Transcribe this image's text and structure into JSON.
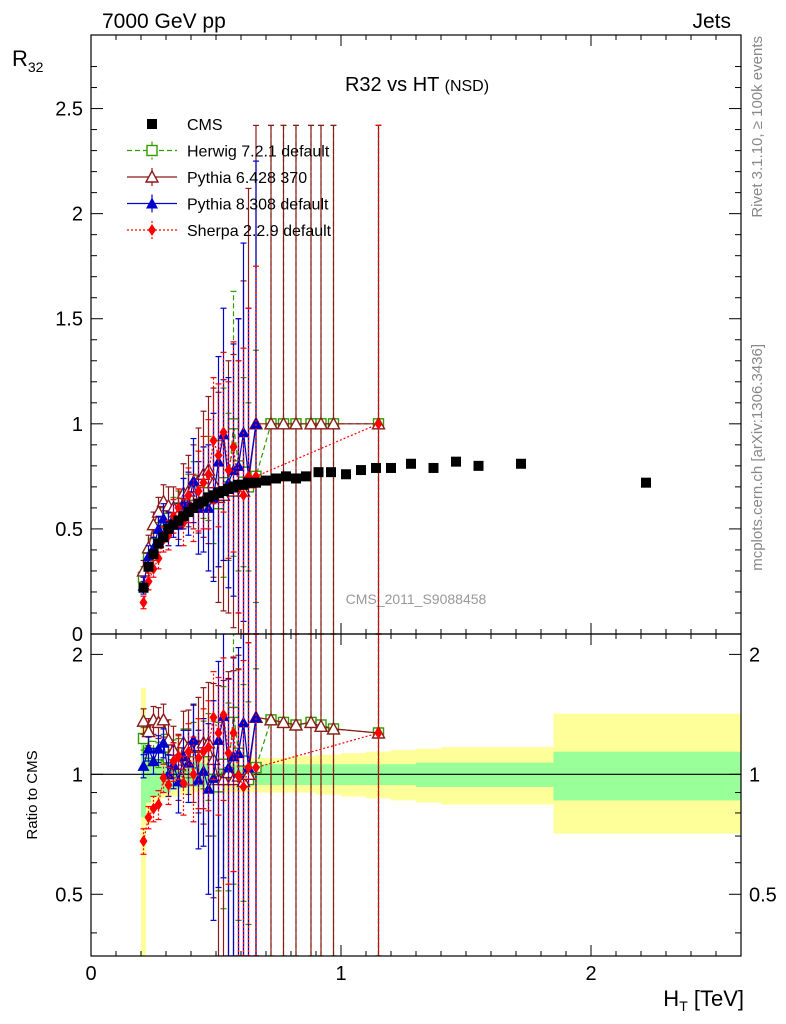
{
  "header": {
    "left": "7000 GeV pp",
    "right": "Jets"
  },
  "side_labels": {
    "rivet": "Rivet 3.1.10, ≥ 100k events",
    "mcplots": "mcplots.cern.ch [arXiv:1306.3436]"
  },
  "analysis_id": "CMS_2011_S9088458",
  "colors": {
    "cms": "#000000",
    "herwig": "#339900",
    "pythia6": "#8b1a1a",
    "pythia8": "#0000cc",
    "sherpa": "#ff0000",
    "band_outer": "#ffff99",
    "band_inner": "#99ff99"
  },
  "chart_data": [
    {
      "type": "scatter",
      "panel": "main",
      "title_main": "R32 vs HT",
      "title_sub": "(NSD)",
      "ylabel_main": "R",
      "ylabel_sub": "32",
      "xlim": [
        0,
        2.6
      ],
      "ylim": [
        0,
        2.85
      ],
      "yticks": [
        0,
        0.5,
        1,
        1.5,
        2,
        2.5
      ],
      "ytick_labels": [
        "0",
        "0.5",
        "1",
        "1.5",
        "2",
        "2.5"
      ],
      "legend_position": "top-left",
      "series": [
        {
          "name": "CMS",
          "key": "cms",
          "x": [
            0.21,
            0.23,
            0.25,
            0.27,
            0.29,
            0.31,
            0.33,
            0.35,
            0.37,
            0.39,
            0.41,
            0.43,
            0.45,
            0.47,
            0.49,
            0.51,
            0.53,
            0.55,
            0.57,
            0.59,
            0.61,
            0.63,
            0.66,
            0.7,
            0.74,
            0.78,
            0.82,
            0.86,
            0.91,
            0.96,
            1.02,
            1.08,
            1.14,
            1.2,
            1.28,
            1.37,
            1.46,
            1.55,
            1.72,
            2.22
          ],
          "y": [
            0.22,
            0.32,
            0.38,
            0.43,
            0.46,
            0.5,
            0.52,
            0.54,
            0.56,
            0.58,
            0.6,
            0.62,
            0.63,
            0.65,
            0.66,
            0.67,
            0.68,
            0.69,
            0.7,
            0.71,
            0.71,
            0.72,
            0.72,
            0.73,
            0.74,
            0.75,
            0.74,
            0.75,
            0.77,
            0.77,
            0.76,
            0.78,
            0.79,
            0.79,
            0.81,
            0.79,
            0.82,
            0.8,
            0.81,
            0.72
          ]
        },
        {
          "name": "Herwig 7.2.1 default",
          "key": "herwig",
          "x": [
            0.21,
            0.23,
            0.25,
            0.27,
            0.29,
            0.31,
            0.33,
            0.35,
            0.37,
            0.39,
            0.41,
            0.43,
            0.45,
            0.47,
            0.49,
            0.51,
            0.53,
            0.55,
            0.57,
            0.59,
            0.61,
            0.63,
            0.66,
            0.72,
            0.77,
            0.82,
            0.88,
            0.92,
            0.97,
            1.15
          ],
          "y": [
            0.27,
            0.36,
            0.43,
            0.48,
            0.54,
            0.55,
            0.58,
            0.6,
            0.65,
            0.66,
            0.7,
            0.73,
            0.72,
            0.74,
            0.68,
            0.62,
            0.72,
            0.7,
            1.0,
            0.8,
            0.77,
            0.7,
            0.75,
            1.0,
            1.0,
            1.0,
            1.0,
            1.0,
            1.0,
            1.0
          ],
          "yerr": [
            0.05,
            0.05,
            0.05,
            0.05,
            0.06,
            0.06,
            0.07,
            0.08,
            0.09,
            0.1,
            0.12,
            0.14,
            0.17,
            0.2,
            0.25,
            0.3,
            0.45,
            0.35,
            0.63,
            0.5,
            0.45,
            0.4,
            0.6,
            1.42,
            1.42,
            1.42,
            1.42,
            1.42,
            1.42,
            1.42
          ]
        },
        {
          "name": "Pythia 6.428 370",
          "key": "pythia6",
          "x": [
            0.21,
            0.23,
            0.25,
            0.27,
            0.29,
            0.31,
            0.33,
            0.35,
            0.37,
            0.39,
            0.41,
            0.43,
            0.45,
            0.47,
            0.49,
            0.51,
            0.53,
            0.55,
            0.57,
            0.59,
            0.61,
            0.63,
            0.66,
            0.72,
            0.77,
            0.82,
            0.88,
            0.92,
            0.97,
            1.15
          ],
          "y": [
            0.3,
            0.41,
            0.52,
            0.58,
            0.63,
            0.61,
            0.6,
            0.57,
            0.67,
            0.68,
            0.7,
            0.73,
            0.76,
            0.78,
            0.72,
            0.65,
            0.66,
            0.7,
            0.68,
            0.7,
            0.68,
            0.72,
            1.0,
            1.0,
            1.0,
            1.0,
            1.0,
            1.0,
            1.0,
            1.0
          ],
          "yerr": [
            0.05,
            0.06,
            0.06,
            0.07,
            0.08,
            0.09,
            0.1,
            0.12,
            0.14,
            0.17,
            0.2,
            0.25,
            0.3,
            0.35,
            0.45,
            0.5,
            0.55,
            0.6,
            0.65,
            0.8,
            1.0,
            1.4,
            1.42,
            1.42,
            1.42,
            1.42,
            1.42,
            1.42,
            1.42,
            1.42
          ]
        },
        {
          "name": "Pythia 8.308 default",
          "key": "pythia8",
          "x": [
            0.21,
            0.23,
            0.25,
            0.27,
            0.29,
            0.31,
            0.33,
            0.35,
            0.37,
            0.39,
            0.41,
            0.43,
            0.45,
            0.47,
            0.49,
            0.51,
            0.53,
            0.55,
            0.57,
            0.59,
            0.61,
            0.63,
            0.66
          ],
          "y": [
            0.23,
            0.37,
            0.41,
            0.5,
            0.55,
            0.5,
            0.55,
            0.52,
            0.62,
            0.62,
            0.73,
            0.6,
            0.64,
            0.6,
            0.65,
            0.82,
            0.95,
            0.72,
            0.78,
            0.8,
            0.96,
            0.75,
            1.0
          ],
          "yerr": [
            0.04,
            0.05,
            0.05,
            0.06,
            0.07,
            0.08,
            0.09,
            0.1,
            0.12,
            0.15,
            0.2,
            0.22,
            0.25,
            0.3,
            0.4,
            0.5,
            0.6,
            0.5,
            0.6,
            0.7,
            0.9,
            0.8,
            1.25
          ]
        },
        {
          "name": "Sherpa 2.2.9 default",
          "key": "sherpa",
          "x": [
            0.21,
            0.23,
            0.25,
            0.27,
            0.29,
            0.31,
            0.33,
            0.35,
            0.37,
            0.39,
            0.41,
            0.43,
            0.45,
            0.47,
            0.49,
            0.51,
            0.53,
            0.55,
            0.57,
            0.59,
            0.61,
            0.63,
            0.66,
            1.15
          ],
          "y": [
            0.15,
            0.25,
            0.31,
            0.36,
            0.45,
            0.47,
            0.56,
            0.6,
            0.53,
            0.66,
            0.6,
            0.68,
            0.72,
            0.76,
            0.92,
            0.85,
            0.96,
            0.78,
            0.89,
            0.7,
            0.66,
            0.75,
            0.75,
            1.0
          ],
          "yerr": [
            0.03,
            0.04,
            0.04,
            0.05,
            0.06,
            0.07,
            0.08,
            0.09,
            0.11,
            0.13,
            0.16,
            0.19,
            0.22,
            0.26,
            0.3,
            0.34,
            0.38,
            0.42,
            0.5,
            0.6,
            0.7,
            0.8,
            1.0,
            1.42
          ]
        }
      ]
    },
    {
      "type": "scatter",
      "panel": "ratio",
      "ylabel": "Ratio to CMS",
      "xlabel_main": "H",
      "xlabel_sub": "T",
      "xlabel_unit": " [TeV]",
      "xlim": [
        0,
        2.6
      ],
      "ylim": [
        0.35,
        2.25
      ],
      "xticks": [
        0,
        1,
        2
      ],
      "xtick_labels": [
        "0",
        "1",
        "2"
      ],
      "yticks": [
        0.5,
        1,
        2
      ],
      "ytick_labels": [
        "0.5",
        "1",
        "2"
      ],
      "reference_line": 1,
      "band": {
        "x_edges": [
          0.2,
          0.22,
          0.24,
          0.28,
          0.32,
          0.36,
          0.4,
          0.45,
          0.5,
          0.6,
          0.7,
          0.8,
          0.9,
          1.0,
          1.1,
          1.2,
          1.3,
          1.4,
          1.5,
          1.6,
          1.85,
          2.6
        ],
        "inner_lo": [
          0.78,
          0.85,
          0.88,
          0.9,
          0.92,
          0.93,
          0.93,
          0.94,
          0.94,
          0.94,
          0.94,
          0.94,
          0.94,
          0.94,
          0.94,
          0.94,
          0.93,
          0.93,
          0.93,
          0.93,
          0.86
        ],
        "inner_hi": [
          1.22,
          1.15,
          1.12,
          1.1,
          1.08,
          1.07,
          1.07,
          1.06,
          1.06,
          1.06,
          1.06,
          1.06,
          1.06,
          1.06,
          1.06,
          1.06,
          1.07,
          1.07,
          1.07,
          1.07,
          1.14
        ],
        "outer_lo": [
          0.35,
          0.75,
          0.85,
          0.87,
          0.88,
          0.89,
          0.9,
          0.9,
          0.9,
          0.9,
          0.9,
          0.9,
          0.89,
          0.88,
          0.87,
          0.86,
          0.85,
          0.84,
          0.84,
          0.84,
          0.71
        ],
        "outer_hi": [
          1.65,
          1.3,
          1.17,
          1.14,
          1.12,
          1.11,
          1.1,
          1.1,
          1.1,
          1.1,
          1.1,
          1.11,
          1.12,
          1.13,
          1.14,
          1.15,
          1.16,
          1.17,
          1.17,
          1.17,
          1.42
        ]
      },
      "series": [
        {
          "name": "Herwig 7.2.1 default",
          "key": "herwig",
          "x": [
            0.21,
            0.23,
            0.25,
            0.27,
            0.29,
            0.31,
            0.33,
            0.35,
            0.37,
            0.39,
            0.41,
            0.43,
            0.45,
            0.47,
            0.49,
            0.51,
            0.53,
            0.55,
            0.57,
            0.59,
            0.61,
            0.63,
            0.66,
            0.72,
            0.77,
            0.82,
            0.88,
            0.92,
            0.97,
            1.15
          ],
          "y": [
            1.23,
            1.13,
            1.13,
            1.12,
            1.17,
            1.1,
            1.12,
            1.11,
            1.16,
            1.14,
            1.17,
            1.18,
            1.14,
            1.14,
            1.03,
            0.93,
            1.06,
            1.01,
            1.43,
            1.13,
            1.08,
            0.97,
            1.04,
            1.37,
            1.35,
            1.33,
            1.35,
            1.33,
            1.3,
            1.27
          ],
          "yerr": [
            0.08,
            0.08,
            0.08,
            0.08,
            0.09,
            0.09,
            0.1,
            0.12,
            0.14,
            0.16,
            0.18,
            0.2,
            0.22,
            0.28,
            0.33,
            0.42,
            0.6,
            0.5,
            0.9,
            0.7,
            0.6,
            0.55,
            0.8,
            1.8,
            1.8,
            1.8,
            1.8,
            1.8,
            1.8,
            1.8
          ]
        },
        {
          "name": "Pythia 6.428 370",
          "key": "pythia6",
          "x": [
            0.21,
            0.23,
            0.25,
            0.27,
            0.29,
            0.31,
            0.33,
            0.35,
            0.37,
            0.39,
            0.41,
            0.43,
            0.45,
            0.47,
            0.49,
            0.51,
            0.53,
            0.55,
            0.57,
            0.59,
            0.61,
            0.63,
            0.66,
            0.72,
            0.77,
            0.82,
            0.88,
            0.92,
            0.97,
            1.15
          ],
          "y": [
            1.36,
            1.28,
            1.37,
            1.35,
            1.37,
            1.22,
            1.15,
            1.06,
            1.2,
            1.17,
            1.17,
            1.18,
            1.2,
            1.2,
            1.09,
            0.97,
            0.97,
            1.01,
            0.97,
            0.99,
            0.96,
            1.0,
            1.39,
            1.37,
            1.35,
            1.33,
            1.35,
            1.32,
            1.3,
            1.27
          ],
          "yerr": [
            0.1,
            0.1,
            0.11,
            0.12,
            0.13,
            0.15,
            0.17,
            0.2,
            0.24,
            0.28,
            0.32,
            0.38,
            0.45,
            0.5,
            0.6,
            0.7,
            0.75,
            0.8,
            0.85,
            1.0,
            1.3,
            1.8,
            1.8,
            1.8,
            1.8,
            1.8,
            1.8,
            1.8,
            1.8,
            1.8
          ]
        },
        {
          "name": "Pythia 8.308 default",
          "key": "pythia8",
          "x": [
            0.21,
            0.23,
            0.25,
            0.27,
            0.29,
            0.31,
            0.33,
            0.35,
            0.37,
            0.39,
            0.41,
            0.43,
            0.45,
            0.47,
            0.49,
            0.51,
            0.53,
            0.55,
            0.57,
            0.59,
            0.61,
            0.63,
            0.66
          ],
          "y": [
            1.05,
            1.16,
            1.08,
            1.16,
            1.2,
            1.0,
            1.06,
            0.96,
            1.11,
            1.07,
            1.22,
            0.97,
            1.02,
            0.92,
            0.98,
            1.22,
            1.4,
            1.04,
            1.11,
            1.13,
            1.35,
            1.04,
            1.39
          ],
          "yerr": [
            0.07,
            0.08,
            0.08,
            0.09,
            0.1,
            0.12,
            0.14,
            0.16,
            0.18,
            0.22,
            0.28,
            0.32,
            0.36,
            0.42,
            0.55,
            0.7,
            0.85,
            0.7,
            0.85,
            0.95,
            1.2,
            1.1,
            1.7
          ]
        },
        {
          "name": "Sherpa 2.2.9 default",
          "key": "sherpa",
          "x": [
            0.21,
            0.23,
            0.25,
            0.27,
            0.29,
            0.31,
            0.33,
            0.35,
            0.37,
            0.39,
            0.41,
            0.43,
            0.45,
            0.47,
            0.49,
            0.51,
            0.53,
            0.55,
            0.57,
            0.59,
            0.61,
            0.63,
            0.66,
            1.15
          ],
          "y": [
            0.68,
            0.78,
            0.82,
            0.84,
            0.98,
            0.94,
            1.08,
            1.11,
            0.95,
            1.14,
            1.0,
            1.1,
            1.14,
            1.17,
            1.39,
            1.27,
            1.41,
            1.13,
            1.27,
            0.99,
            0.93,
            1.04,
            1.04,
            1.27
          ],
          "yerr": [
            0.05,
            0.05,
            0.06,
            0.07,
            0.08,
            0.1,
            0.12,
            0.14,
            0.16,
            0.2,
            0.24,
            0.28,
            0.32,
            0.36,
            0.42,
            0.48,
            0.55,
            0.6,
            0.7,
            0.85,
            1.0,
            1.1,
            1.4,
            1.8
          ]
        }
      ]
    }
  ]
}
